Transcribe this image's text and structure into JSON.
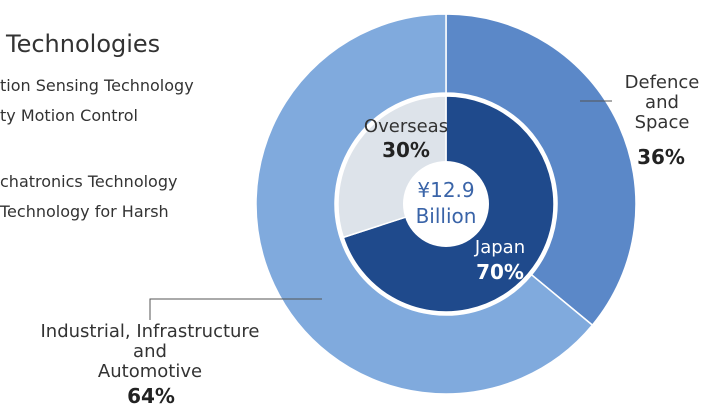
{
  "left_panel": {
    "title": "Technologies",
    "items": [
      "tion Sensing Technology",
      "ty Motion Control",
      "chatronics Technology",
      "Technology for Harsh"
    ]
  },
  "chart_data": [
    {
      "type": "donut",
      "categories": [
        "Defence\nand\nSpace",
        "Industrial, Infrastructure\nand\nAutomotive"
      ],
      "values": [
        36,
        64
      ],
      "value_labels": [
        "36%",
        "64%"
      ],
      "colors": [
        "#5b88c8",
        "#80aadd"
      ]
    },
    {
      "type": "pie",
      "categories": [
        "Japan",
        "Overseas"
      ],
      "values": [
        70,
        30
      ],
      "value_labels": [
        "70%",
        "30%"
      ],
      "colors": [
        "#1f4a8c",
        "#dde3ea"
      ],
      "center_label": "¥12.9\nBillion"
    }
  ]
}
